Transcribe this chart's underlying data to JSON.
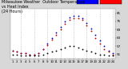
{
  "bg_color": "#d8d8d8",
  "plot_bg_color": "#ffffff",
  "hours": [
    1,
    2,
    3,
    4,
    5,
    6,
    7,
    8,
    9,
    10,
    11,
    12,
    13,
    14,
    15,
    16,
    17,
    18,
    19,
    20,
    21,
    22,
    23,
    24
  ],
  "temp": [
    54,
    53,
    52,
    52,
    51,
    51,
    52,
    55,
    59,
    63,
    67,
    71,
    75,
    78,
    79,
    79,
    77,
    74,
    70,
    65,
    61,
    57,
    54,
    52
  ],
  "heat_index": [
    54,
    53,
    52,
    52,
    51,
    51,
    52,
    55,
    58,
    62,
    65,
    69,
    73,
    76,
    77,
    77,
    76,
    72,
    68,
    63,
    59,
    55,
    53,
    51
  ],
  "dew_point": [
    51,
    51,
    50,
    50,
    50,
    50,
    50,
    51,
    52,
    53,
    54,
    55,
    56,
    57,
    57,
    56,
    55,
    54,
    53,
    52,
    51,
    51,
    50,
    50
  ],
  "ylim": [
    48,
    84
  ],
  "yticks": [
    51,
    57,
    63,
    69,
    75,
    81
  ],
  "ytick_labels": [
    "51",
    "57",
    "63",
    "69",
    "75",
    "81"
  ],
  "ytick_fontsize": 3.0,
  "xtick_fontsize": 2.8,
  "temp_color": "#0000cc",
  "heat_color": "#cc0000",
  "dew_color": "#000000",
  "grid_color": "#aaaaaa",
  "legend_temp_color": "#0000ff",
  "legend_heat_color": "#ff0000",
  "dot_size": 1.8,
  "title_line1": "Milwaukee Weather  Outdoor Temperature",
  "title_line2": "vs Heat Index",
  "title_line3": "(24 Hours)",
  "title_fontsize": 3.5
}
